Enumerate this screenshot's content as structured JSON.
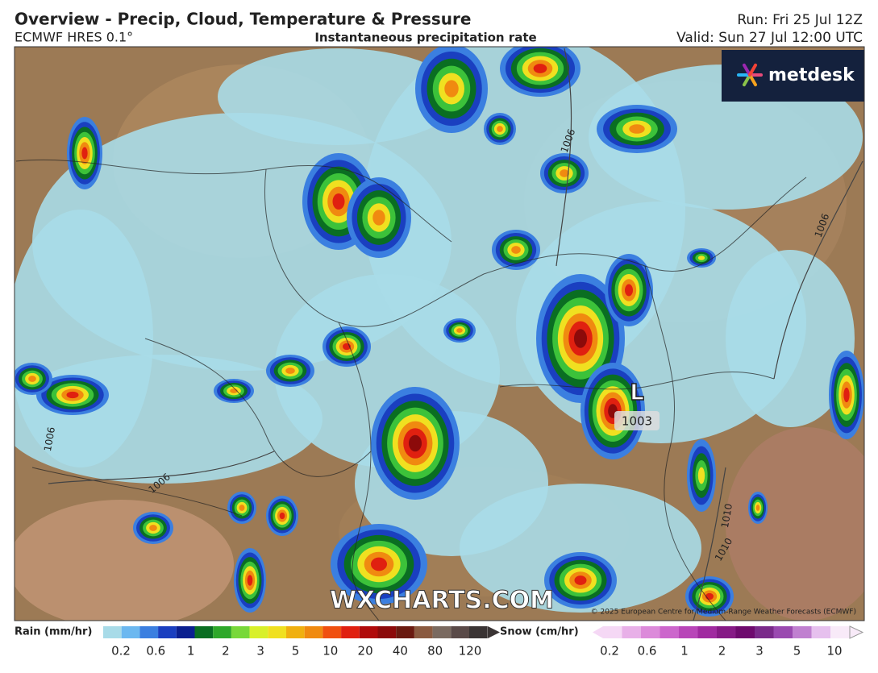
{
  "header": {
    "title": "Overview - Precip, Cloud, Temperature & Pressure",
    "model": "ECMWF HRES 0.1°",
    "subtitle": "Instantaneous precipitation rate",
    "run": "Run: Fri 25 Jul 12Z",
    "valid": "Valid: Sun 27 Jul 12:00 UTC"
  },
  "map": {
    "brand": "metdesk",
    "watermark": "WXCHARTS.COM",
    "copyright": "© 2025 European Centre for Medium-Range Weather Forecasts (ECMWF)",
    "low_symbol": "L",
    "low_pressure": "1003",
    "isobar_labels": [
      "1006",
      "1006",
      "1006",
      "1006",
      "1010",
      "1010"
    ]
  },
  "legend": {
    "rain_title": "Rain (mm/hr)",
    "rain_labels": [
      0.2,
      0.6,
      1,
      2,
      3,
      5,
      10,
      20,
      40,
      80,
      120
    ],
    "snow_title": "Snow (cm/hr)",
    "snow_labels": [
      0.2,
      0.6,
      1,
      2,
      3,
      5,
      10
    ]
  }
}
